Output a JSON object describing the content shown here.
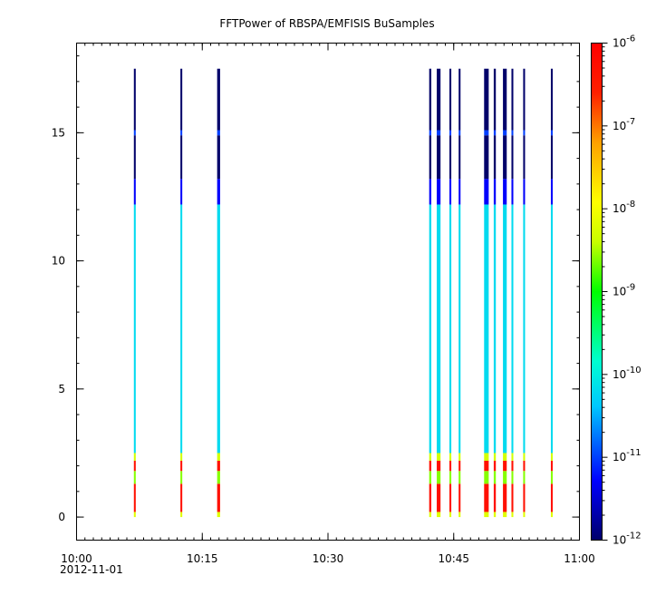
{
  "chart_data": {
    "type": "heatmap",
    "title": "FFTPower of RBSPA/EMFISIS  BuSamples",
    "xlabel": "",
    "ylabel": "",
    "x_axis": {
      "range": [
        "10:00",
        "11:00"
      ],
      "range_minutes": [
        0,
        60
      ],
      "major_ticks": [
        {
          "minute": 0,
          "label": "10:00"
        },
        {
          "minute": 15,
          "label": "10:15"
        },
        {
          "minute": 30,
          "label": "10:30"
        },
        {
          "minute": 45,
          "label": "10:45"
        },
        {
          "minute": 60,
          "label": "11:00"
        }
      ],
      "minor_tick_minutes": 1,
      "date_label": "2012-11-01"
    },
    "y_axis": {
      "range": [
        -0.9,
        18.5
      ],
      "ticks": [
        0,
        5,
        10,
        15
      ],
      "tick_labels": [
        "0",
        "5",
        "10",
        "15"
      ],
      "minor_tick_step": 1
    },
    "colorbar": {
      "scale": "log",
      "range": [
        1e-12,
        1e-06
      ],
      "tick_labels": [
        {
          "exp": -6,
          "label": "10-6"
        },
        {
          "exp": -7,
          "label": "10-7"
        },
        {
          "exp": -8,
          "label": "10-8"
        },
        {
          "exp": -9,
          "label": "10-9"
        },
        {
          "exp": -10,
          "label": "10-10"
        },
        {
          "exp": -11,
          "label": "10-11"
        },
        {
          "exp": -12,
          "label": "10-12"
        }
      ]
    },
    "grid": false,
    "bursts": [
      {
        "minute": 6.95,
        "width": 0.22
      },
      {
        "minute": 12.5,
        "width": 0.22
      },
      {
        "minute": 16.95,
        "width": 0.35
      },
      {
        "minute": 42.2,
        "width": 0.25
      },
      {
        "minute": 43.2,
        "width": 0.45
      },
      {
        "minute": 44.6,
        "width": 0.22
      },
      {
        "minute": 45.7,
        "width": 0.22
      },
      {
        "minute": 48.9,
        "width": 0.55
      },
      {
        "minute": 49.9,
        "width": 0.25
      },
      {
        "minute": 51.1,
        "width": 0.45
      },
      {
        "minute": 52.0,
        "width": 0.22
      },
      {
        "minute": 53.4,
        "width": 0.22
      },
      {
        "minute": 56.7,
        "width": 0.22
      }
    ],
    "burst_spectrum": [
      {
        "from": 0.0,
        "to": 0.2,
        "log_power": -8.2
      },
      {
        "from": 0.2,
        "to": 1.3,
        "log_power": -6.3
      },
      {
        "from": 1.3,
        "to": 1.8,
        "log_power": -8.6
      },
      {
        "from": 1.8,
        "to": 2.2,
        "log_power": -6.3
      },
      {
        "from": 2.2,
        "to": 2.5,
        "log_power": -8.3
      },
      {
        "from": 2.5,
        "to": 12.2,
        "log_power": -10.2
      },
      {
        "from": 12.2,
        "to": 13.2,
        "log_power": -11.3
      },
      {
        "from": 13.2,
        "to": 14.9,
        "log_power": -12.0
      },
      {
        "from": 14.9,
        "to": 15.1,
        "log_power": -11.0
      },
      {
        "from": 15.1,
        "to": 17.5,
        "log_power": -12.0
      }
    ]
  }
}
